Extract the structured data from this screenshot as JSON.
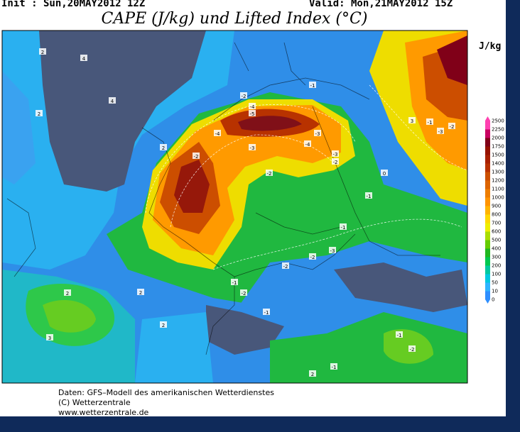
{
  "header": {
    "init": "Init : Sun,20MAY2012 12Z",
    "valid": "Valid: Mon,21MAY2012 15Z",
    "title": "CAPE (J/kg) und Lifted Index (°C)"
  },
  "colorbar": {
    "unit": "J/kg",
    "levels": [
      0,
      10,
      50,
      100,
      200,
      300,
      400,
      500,
      600,
      700,
      800,
      900,
      1000,
      1100,
      1200,
      1300,
      1400,
      1500,
      1750,
      2000,
      2250,
      2500
    ],
    "colors": [
      "#2e8fff",
      "#2fb4ff",
      "#00c8e0",
      "#00c8a0",
      "#00c850",
      "#20b820",
      "#66cc00",
      "#aadd00",
      "#eeee00",
      "#ffd800",
      "#ffb400",
      "#ff9400",
      "#ee7e00",
      "#dd6400",
      "#cc5000",
      "#b83200",
      "#a82000",
      "#961200",
      "#800018",
      "#c80060",
      "#ff40b0"
    ]
  },
  "contour_labels": [
    2,
    4,
    4,
    2,
    2,
    -2,
    -4,
    -5,
    -4,
    -3,
    -2,
    -1,
    -3,
    -2,
    -4,
    -3,
    -2,
    -1,
    0,
    -1,
    -2,
    -3,
    -2,
    -1,
    -2,
    -1,
    2,
    2,
    3,
    2,
    -1,
    -2,
    -1,
    2,
    3,
    -1,
    -3,
    -2
  ],
  "footer": {
    "source": "Daten: GFS–Modell des amerikanischen Wetterdienstes",
    "copyright": "(C) Wetterzentrale",
    "url": "www.wetterzentrale.de"
  }
}
